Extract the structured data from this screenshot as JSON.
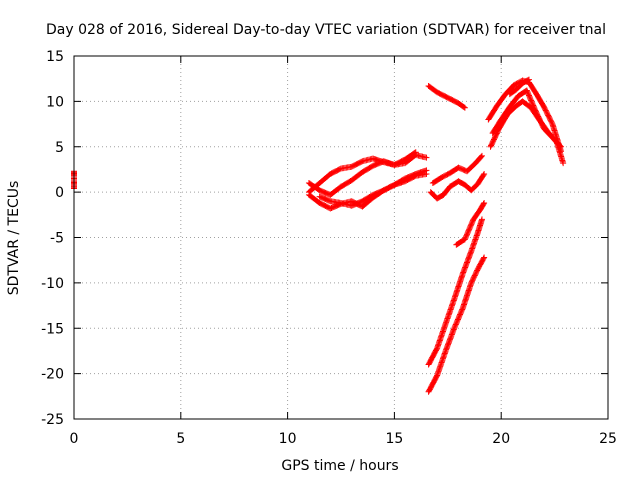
{
  "chart_data": {
    "type": "scatter",
    "title": "Day 028 of 2016, Sidereal Day-to-day VTEC variation (SDTVAR) for receiver tnal",
    "xlabel": "GPS time / hours",
    "ylabel": "SDTVAR / TECUs",
    "xlim": [
      0,
      25
    ],
    "ylim": [
      -25,
      15
    ],
    "xticks": [
      "0",
      "5",
      "10",
      "15",
      "20",
      "25"
    ],
    "yticks": [
      "15",
      "10",
      "5",
      "0",
      "-5",
      "-10",
      "-15",
      "-20",
      "-25"
    ],
    "grid": true,
    "marker_color": "#ff0000",
    "tracks": [
      {
        "x": [
          0.0,
          0.0,
          0.0,
          0.0,
          0.0
        ],
        "y": [
          2.3,
          1.8,
          1.2,
          0.8,
          0.4
        ]
      },
      {
        "x": [
          11.0,
          11.5,
          12.0,
          12.5,
          13.0,
          13.5,
          14.0,
          14.5,
          15.0,
          15.5,
          16.0,
          16.5
        ],
        "y": [
          0.0,
          1.0,
          2.0,
          2.6,
          2.8,
          3.4,
          3.7,
          3.3,
          3.0,
          3.2,
          4.1,
          3.8
        ]
      },
      {
        "x": [
          11.0,
          11.5,
          12.0,
          12.5,
          13.0,
          13.5,
          14.0,
          14.5,
          15.0,
          15.5,
          16.0
        ],
        "y": [
          1.0,
          0.2,
          -0.3,
          0.6,
          1.3,
          2.2,
          2.9,
          3.4,
          3.0,
          3.6,
          4.4
        ]
      },
      {
        "x": [
          11.0,
          11.5,
          12.0,
          12.5,
          13.0,
          13.5,
          14.0,
          14.5,
          15.0,
          15.5,
          16.0,
          16.5
        ],
        "y": [
          -0.3,
          -1.2,
          -1.8,
          -1.3,
          -1.0,
          -1.6,
          -0.6,
          0.2,
          0.8,
          1.2,
          1.8,
          2.0
        ]
      },
      {
        "x": [
          11.5,
          12.0,
          12.5,
          13.0,
          13.5,
          14.0,
          14.5,
          15.0,
          15.5,
          16.0,
          16.5
        ],
        "y": [
          -0.5,
          -1.0,
          -1.2,
          -1.5,
          -1.0,
          -0.3,
          0.2,
          0.8,
          1.5,
          2.0,
          2.4
        ]
      },
      {
        "x": [
          16.6,
          17.0,
          17.5,
          18.0,
          18.3
        ],
        "y": [
          11.7,
          11.0,
          10.4,
          9.8,
          9.3
        ]
      },
      {
        "x": [
          16.7,
          17.0,
          17.3,
          17.6,
          18.0,
          18.3,
          18.6,
          18.9,
          19.2
        ],
        "y": [
          0.0,
          -0.7,
          -0.3,
          0.6,
          1.2,
          0.8,
          0.2,
          0.9,
          2.0
        ]
      },
      {
        "x": [
          16.8,
          17.2,
          17.6,
          18.0,
          18.4,
          18.8,
          19.1
        ],
        "y": [
          1.0,
          1.6,
          2.1,
          2.7,
          2.3,
          3.2,
          4.0
        ]
      },
      {
        "x": [
          16.6,
          17.0,
          17.4,
          17.8,
          18.2,
          18.6,
          18.9,
          19.2
        ],
        "y": [
          -22.0,
          -20.2,
          -17.5,
          -15.0,
          -12.8,
          -10.0,
          -8.5,
          -7.2
        ]
      },
      {
        "x": [
          16.6,
          17.0,
          17.4,
          17.8,
          18.2,
          18.6,
          18.9,
          19.1
        ],
        "y": [
          -19.0,
          -17.2,
          -14.5,
          -11.8,
          -9.0,
          -6.5,
          -4.5,
          -3.0
        ]
      },
      {
        "x": [
          17.9,
          18.3,
          18.7,
          19.0,
          19.2
        ],
        "y": [
          -5.8,
          -5.2,
          -3.0,
          -2.0,
          -1.2
        ]
      },
      {
        "x": [
          19.4,
          19.8,
          20.2,
          20.6,
          21.0,
          21.3,
          21.6,
          22.0,
          22.4,
          22.8
        ],
        "y": [
          8.0,
          9.5,
          10.8,
          11.8,
          12.3,
          12.1,
          11.0,
          9.4,
          7.5,
          4.5
        ]
      },
      {
        "x": [
          19.5,
          19.9,
          20.3,
          20.7,
          21.0,
          21.4,
          21.8,
          22.2,
          22.6,
          22.9
        ],
        "y": [
          5.0,
          7.0,
          8.6,
          9.5,
          10.0,
          9.3,
          7.9,
          6.6,
          5.5,
          3.2
        ]
      },
      {
        "x": [
          19.6,
          20.0,
          20.4,
          20.8,
          21.2,
          21.6,
          22.0,
          22.4,
          22.8
        ],
        "y": [
          6.5,
          8.0,
          9.4,
          10.6,
          11.2,
          9.0,
          7.0,
          6.0,
          5.0
        ]
      },
      {
        "x": [
          20.4,
          20.7,
          21.0,
          21.3
        ],
        "y": [
          10.8,
          11.3,
          12.0,
          12.4
        ]
      }
    ]
  }
}
